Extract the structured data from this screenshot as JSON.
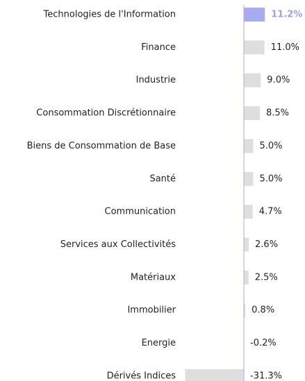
{
  "chart_data": {
    "type": "bar",
    "orientation": "horizontal",
    "categories": [
      "Technologies de l'Information",
      "Finance",
      "Industrie",
      "Consommation Discrétionnaire",
      "Biens de Consommation de Base",
      "Santé",
      "Communication",
      "Services aux Collectivités",
      "Matériaux",
      "Immobilier",
      "Energie",
      "Dérivés Indices"
    ],
    "values": [
      11.2,
      11.0,
      9.0,
      8.5,
      5.0,
      5.0,
      4.7,
      2.6,
      2.5,
      0.8,
      -0.2,
      -31.3
    ],
    "value_labels": [
      "11.2%",
      "11.0%",
      "9.0%",
      "8.5%",
      "5.0%",
      "5.0%",
      "4.7%",
      "2.6%",
      "2.5%",
      "0.8%",
      "-0.2%",
      "-31.3%"
    ],
    "colors": [
      "#a9abf2",
      "#dedede",
      "#dedede",
      "#dedede",
      "#dedede",
      "#dedede",
      "#dedede",
      "#dedede",
      "#dedede",
      "#dedede",
      "#dedede",
      "#dedede"
    ],
    "label_colors": [
      "#9d9ff0",
      "#222222",
      "#222222",
      "#222222",
      "#222222",
      "#222222",
      "#222222",
      "#222222",
      "#222222",
      "#222222",
      "#222222",
      "#222222"
    ],
    "axis_color": "#b8b4ef"
  }
}
